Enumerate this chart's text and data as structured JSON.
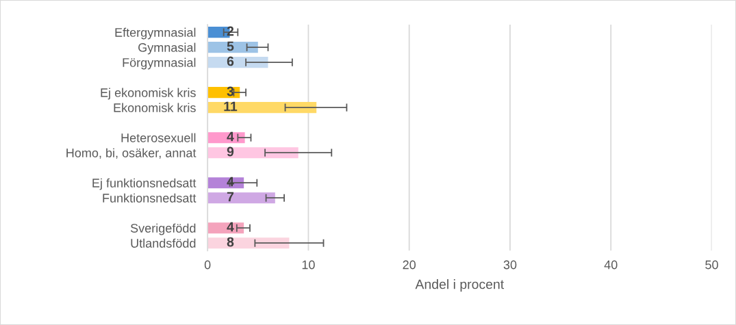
{
  "chart_data": {
    "type": "bar",
    "orientation": "horizontal",
    "xlabel": "Andel i procent",
    "categories": [
      "Eftergymnasial",
      "Gymnasial",
      "Förgymnasial",
      null,
      "Ej ekonomisk kris",
      "Ekonomisk kris",
      null,
      "Heterosexuell",
      "Homo, bi, osäker, annat",
      null,
      "Ej funktionsnedsatt",
      "Funktionsnedsatt",
      null,
      "Sverigefödd",
      "Utlandsfödd"
    ],
    "values": [
      2.2,
      5.0,
      6.0,
      null,
      3.2,
      10.8,
      null,
      3.7,
      9.0,
      null,
      3.6,
      6.7,
      null,
      3.6,
      8.1
    ],
    "value_labels": [
      "2",
      "5",
      "6",
      null,
      "3",
      "11",
      null,
      "4",
      "9",
      null,
      "4",
      "7",
      null,
      "4",
      "8"
    ],
    "errors": [
      [
        1.6,
        3.0
      ],
      [
        3.9,
        6.0
      ],
      [
        3.8,
        8.4
      ],
      null,
      [
        2.6,
        3.8
      ],
      [
        7.7,
        13.8
      ],
      null,
      [
        3.0,
        4.3
      ],
      [
        5.7,
        12.3
      ],
      null,
      [
        2.2,
        4.9
      ],
      [
        5.8,
        7.6
      ],
      null,
      [
        2.9,
        4.2
      ],
      [
        4.7,
        11.5
      ]
    ],
    "colors": [
      "#4a8fd4",
      "#9dc3e6",
      "#c5daf0",
      null,
      "#ffc000",
      "#ffd966",
      null,
      "#ff99cc",
      "#ffc6e2",
      null,
      "#b482d8",
      "#cfa8e4",
      null,
      "#f4a3bc",
      "#fbd4df"
    ],
    "xlim": [
      0,
      50
    ],
    "xticks": [
      0,
      10,
      20,
      30,
      40,
      50
    ],
    "grid": "x"
  }
}
